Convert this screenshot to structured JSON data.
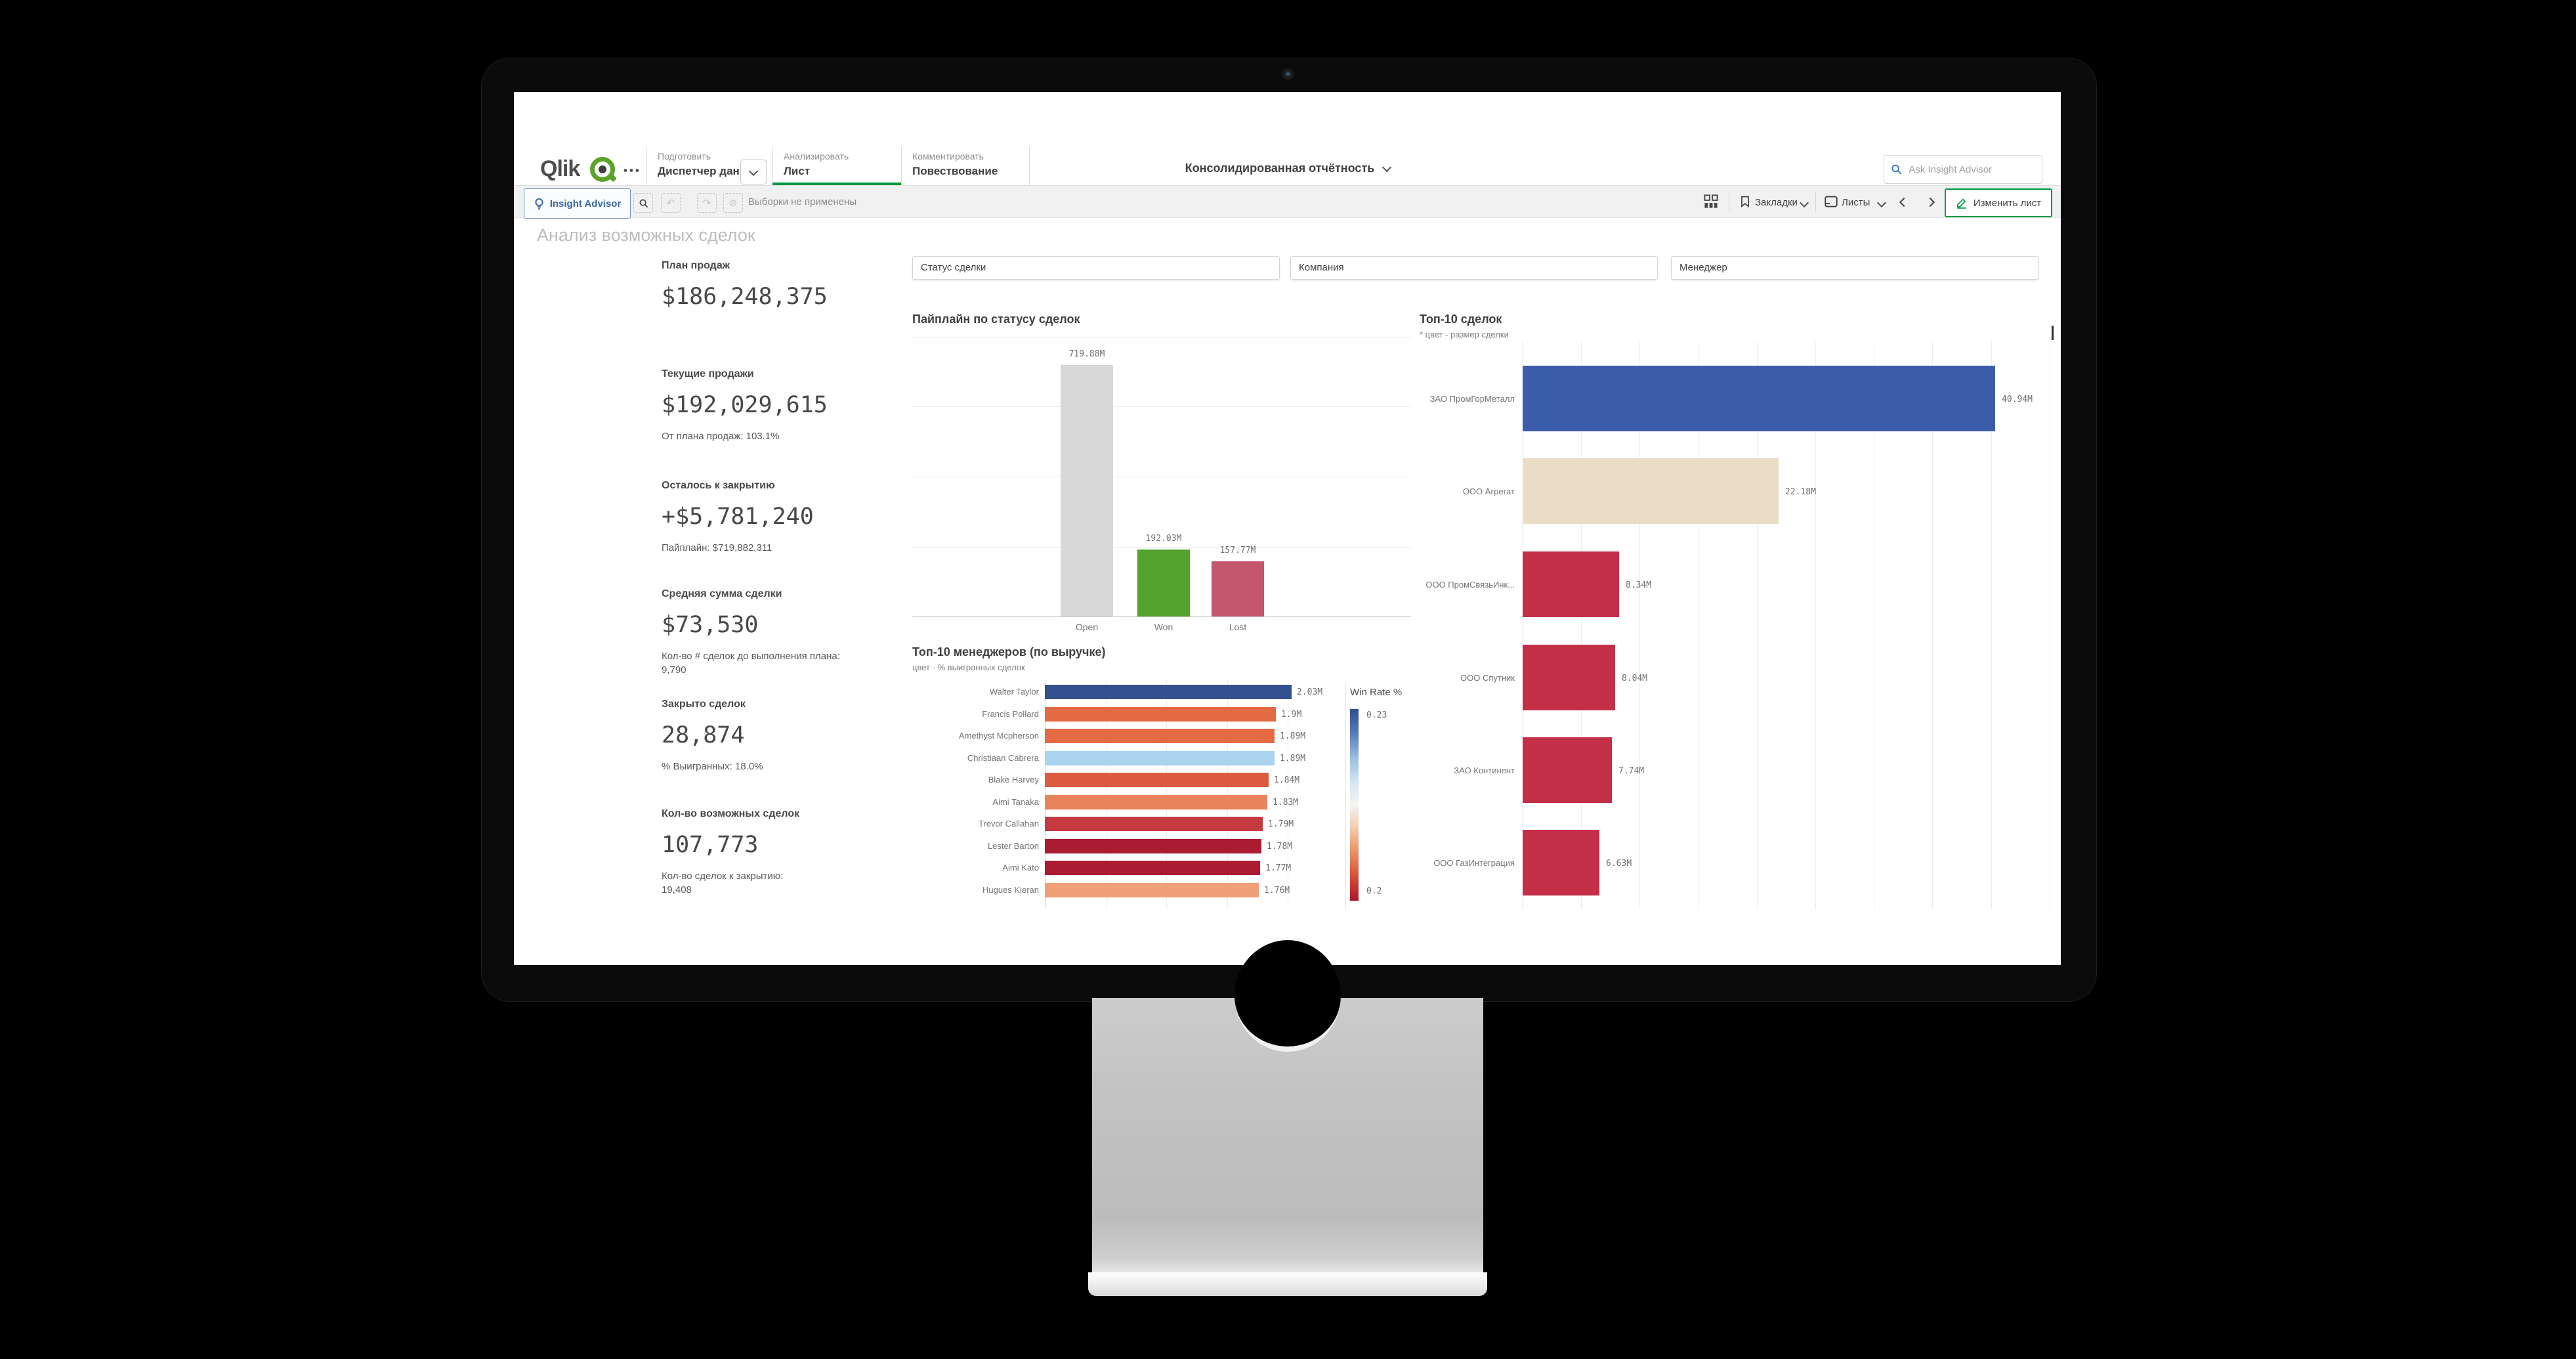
{
  "chrome": {
    "logo_text": "Qlik",
    "tabs": [
      {
        "group": "Подготовить",
        "item": "Диспетчер данн..."
      },
      {
        "group": "Анализировать",
        "item": "Лист"
      },
      {
        "group": "Комментировать",
        "item": "Повествование"
      }
    ],
    "app_title": "Консолидированная отчётность",
    "search_placeholder": "Ask Insight Advisor",
    "toolbar": {
      "insight_advisor": "Insight Advisor",
      "selections_status": "Выборки не применены",
      "bookmarks": "Закладки",
      "sheets": "Листы",
      "edit_sheet": "Изменить лист"
    }
  },
  "sheet": {
    "title": "Анализ возможных сделок",
    "filters": [
      {
        "label": "Статус сделки"
      },
      {
        "label": "Компания"
      },
      {
        "label": "Менеджер"
      }
    ],
    "kpis": [
      {
        "label": "План продаж",
        "value": "$186,248,375",
        "sub": ""
      },
      {
        "label": "Текущие продажи",
        "value": "$192,029,615",
        "sub": "От плана продаж: 103.1%"
      },
      {
        "label": "Осталось к закрытию",
        "value": "+$5,781,240",
        "sub": "Пайплайн: $719,882,311"
      },
      {
        "label": "Средняя сумма сделки",
        "value": "$73,530",
        "sub": "Кол-во # сделок до выполнения плана:\n9,790"
      },
      {
        "label": "Закрыто сделок",
        "value": "28,874",
        "sub": "% Выигранных: 18.0%"
      },
      {
        "label": "Кол-во возможных сделок",
        "value": "107,773",
        "sub": "Кол-во сделок к закрытию:\n19,408"
      }
    ]
  },
  "chart_data": [
    {
      "type": "bar",
      "title": "Пайплайн по статусу сделок",
      "categories": [
        "Open",
        "Won",
        "Lost"
      ],
      "values": [
        719.88,
        192.03,
        157.77
      ],
      "labels": [
        "719.88M",
        "192.03M",
        "157.77M"
      ],
      "unit": "M USD",
      "ylim": [
        0,
        800
      ],
      "grid": "horizontal",
      "colors": [
        "#d8d8d8",
        "#54a32f",
        "#c4566d"
      ]
    },
    {
      "type": "bar-horizontal",
      "title": "Топ-10 менеджеров (по выручке)",
      "subtitle": "цвет - % выигранных сделок",
      "categories": [
        "Walter Taylor",
        "Francis Pollard",
        "Amethyst Mcpherson",
        "Christiaan Cabrera",
        "Blake Harvey",
        "Aimi Tanaka",
        "Trevor Callahan",
        "Lester Barton",
        "Aimi Kato",
        "Hugues Kieran"
      ],
      "values": [
        2.03,
        1.9,
        1.89,
        1.89,
        1.84,
        1.83,
        1.79,
        1.78,
        1.77,
        1.76
      ],
      "labels": [
        "2.03M",
        "1.9M",
        "1.89M",
        "1.89M",
        "1.84M",
        "1.83M",
        "1.79M",
        "1.78M",
        "1.77M",
        "1.76M"
      ],
      "xlim": [
        0,
        2.2
      ],
      "grid": "vertical",
      "colors": [
        "#33508f",
        "#e46a43",
        "#e46a43",
        "#a9d3ef",
        "#dd5b41",
        "#e8835c",
        "#c53a41",
        "#ab1b31",
        "#ab1b31",
        "#efa078"
      ],
      "legend": {
        "title": "Win Rate %",
        "max_label": "0.23",
        "min_label": "0.2"
      }
    },
    {
      "type": "bar-horizontal",
      "title": "Топ-10 сделок",
      "subtitle": "* цвет - размер сделки",
      "categories": [
        "ЗАО ПромГорМеталл",
        "ООО Агрегат",
        "ООО ПромСвязьИнк...",
        "ООО Спутник",
        "ЗАО Континент",
        "ООО ГазИнтеграция"
      ],
      "values": [
        40.94,
        22.18,
        8.34,
        8.04,
        7.74,
        6.63
      ],
      "labels": [
        "40.94M",
        "22.18M",
        "8.34M",
        "8.04M",
        "7.74M",
        "6.63M"
      ],
      "xlim": [
        0,
        45
      ],
      "grid": "vertical",
      "colors": [
        "#3b5ca8",
        "#e9ddc6",
        "#c22f47",
        "#c22f47",
        "#c22f47",
        "#c22f47"
      ]
    }
  ]
}
